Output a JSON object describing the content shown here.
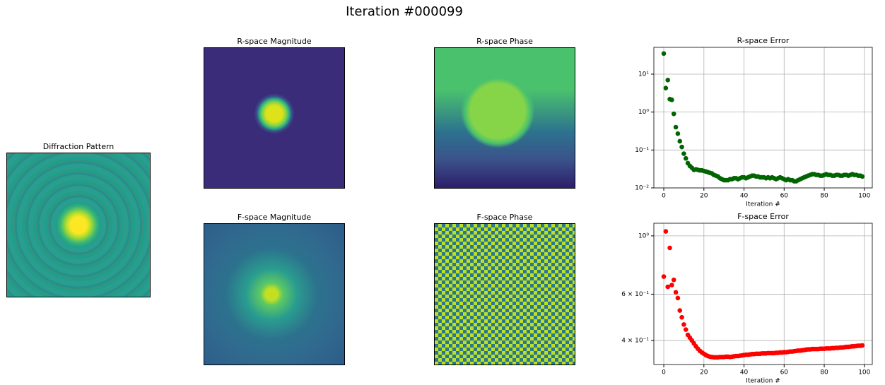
{
  "title": "Iteration #000099",
  "images": [
    {
      "title": "Diffraction Pattern"
    },
    {
      "title": "R-space Magnitude"
    },
    {
      "title": "F-space Magnitude"
    },
    {
      "title": "R-space Phase"
    },
    {
      "title": "F-space Phase"
    }
  ],
  "chart_data": [
    {
      "type": "scatter",
      "title": "R-space Error",
      "xlabel": "Iteration #",
      "color": "#006400",
      "log_y": true,
      "grid": true,
      "xlim": [
        -4.95,
        103.95
      ],
      "xticks": [
        0,
        20,
        40,
        60,
        80,
        100
      ],
      "ylim": [
        0.01,
        51
      ],
      "yticks": [
        {
          "value": 0.01,
          "label": "10⁻²"
        },
        {
          "value": 0.1,
          "label": "10⁻¹"
        },
        {
          "value": 1,
          "label": "10⁰"
        },
        {
          "value": 10,
          "label": "10¹"
        }
      ],
      "x": [
        0,
        1,
        2,
        3,
        4,
        5,
        6,
        7,
        8,
        9,
        10,
        11,
        12,
        13,
        14,
        15,
        16,
        17,
        18,
        19,
        20,
        21,
        22,
        23,
        24,
        25,
        26,
        27,
        28,
        29,
        30,
        31,
        32,
        33,
        34,
        35,
        36,
        37,
        38,
        39,
        40,
        41,
        42,
        43,
        44,
        45,
        46,
        47,
        48,
        49,
        50,
        51,
        52,
        53,
        54,
        55,
        56,
        57,
        58,
        59,
        60,
        61,
        62,
        63,
        64,
        65,
        66,
        67,
        68,
        69,
        70,
        71,
        72,
        73,
        74,
        75,
        76,
        77,
        78,
        79,
        80,
        81,
        82,
        83,
        84,
        85,
        86,
        87,
        88,
        89,
        90,
        91,
        92,
        93,
        94,
        95,
        96,
        97,
        98,
        99
      ],
      "values": [
        35,
        4.3,
        7,
        2.2,
        2.1,
        0.9,
        0.4,
        0.27,
        0.17,
        0.12,
        0.08,
        0.06,
        0.045,
        0.038,
        0.034,
        0.03,
        0.031,
        0.03,
        0.029,
        0.029,
        0.028,
        0.027,
        0.026,
        0.025,
        0.024,
        0.022,
        0.021,
        0.02,
        0.018,
        0.017,
        0.016,
        0.016,
        0.016,
        0.017,
        0.017,
        0.018,
        0.018,
        0.017,
        0.018,
        0.019,
        0.019,
        0.018,
        0.019,
        0.02,
        0.021,
        0.021,
        0.02,
        0.02,
        0.019,
        0.019,
        0.019,
        0.018,
        0.019,
        0.018,
        0.019,
        0.018,
        0.017,
        0.018,
        0.019,
        0.018,
        0.017,
        0.016,
        0.017,
        0.016,
        0.016,
        0.015,
        0.015,
        0.016,
        0.017,
        0.018,
        0.019,
        0.02,
        0.021,
        0.022,
        0.023,
        0.023,
        0.022,
        0.022,
        0.021,
        0.021,
        0.022,
        0.023,
        0.022,
        0.022,
        0.021,
        0.021,
        0.022,
        0.022,
        0.021,
        0.021,
        0.022,
        0.022,
        0.021,
        0.022,
        0.023,
        0.022,
        0.022,
        0.021,
        0.021,
        0.02
      ]
    },
    {
      "type": "scatter",
      "title": "F-space Error",
      "xlabel": "Iteration #",
      "color": "#ff0000",
      "log_y": true,
      "grid": true,
      "xlim": [
        -4.95,
        103.95
      ],
      "xticks": [
        0,
        20,
        40,
        60,
        80,
        100
      ],
      "ylim": [
        0.324,
        1.117
      ],
      "yticks": [
        {
          "value": 0.4,
          "label": "4 × 10⁻¹"
        },
        {
          "value": 0.6,
          "label": "6 × 10⁻¹"
        },
        {
          "value": 1,
          "label": "10⁰"
        }
      ],
      "x": [
        0,
        1,
        2,
        3,
        4,
        5,
        6,
        7,
        8,
        9,
        10,
        11,
        12,
        13,
        14,
        15,
        16,
        17,
        18,
        19,
        20,
        21,
        22,
        23,
        24,
        25,
        26,
        27,
        28,
        29,
        30,
        31,
        32,
        33,
        34,
        35,
        36,
        37,
        38,
        39,
        40,
        41,
        42,
        43,
        44,
        45,
        46,
        47,
        48,
        49,
        50,
        51,
        52,
        53,
        54,
        55,
        56,
        57,
        58,
        59,
        60,
        61,
        62,
        63,
        64,
        65,
        66,
        67,
        68,
        69,
        70,
        71,
        72,
        73,
        74,
        75,
        76,
        77,
        78,
        79,
        80,
        81,
        82,
        83,
        84,
        85,
        86,
        87,
        88,
        89,
        90,
        91,
        92,
        93,
        94,
        95,
        96,
        97,
        98,
        99
      ],
      "values": [
        0.7,
        1.04,
        0.64,
        0.9,
        0.65,
        0.68,
        0.61,
        0.58,
        0.52,
        0.49,
        0.46,
        0.44,
        0.42,
        0.41,
        0.4,
        0.39,
        0.38,
        0.372,
        0.365,
        0.36,
        0.356,
        0.352,
        0.349,
        0.347,
        0.346,
        0.345,
        0.345,
        0.345,
        0.346,
        0.346,
        0.346,
        0.347,
        0.347,
        0.346,
        0.347,
        0.348,
        0.349,
        0.349,
        0.35,
        0.351,
        0.352,
        0.353,
        0.353,
        0.354,
        0.355,
        0.355,
        0.356,
        0.356,
        0.356,
        0.357,
        0.357,
        0.357,
        0.358,
        0.358,
        0.358,
        0.358,
        0.359,
        0.359,
        0.36,
        0.36,
        0.361,
        0.361,
        0.362,
        0.363,
        0.363,
        0.364,
        0.365,
        0.366,
        0.366,
        0.367,
        0.368,
        0.369,
        0.37,
        0.37,
        0.371,
        0.371,
        0.371,
        0.371,
        0.372,
        0.372,
        0.372,
        0.373,
        0.373,
        0.373,
        0.374,
        0.374,
        0.375,
        0.375,
        0.376,
        0.376,
        0.377,
        0.378,
        0.378,
        0.379,
        0.38,
        0.38,
        0.381,
        0.382,
        0.382,
        0.383
      ]
    }
  ]
}
